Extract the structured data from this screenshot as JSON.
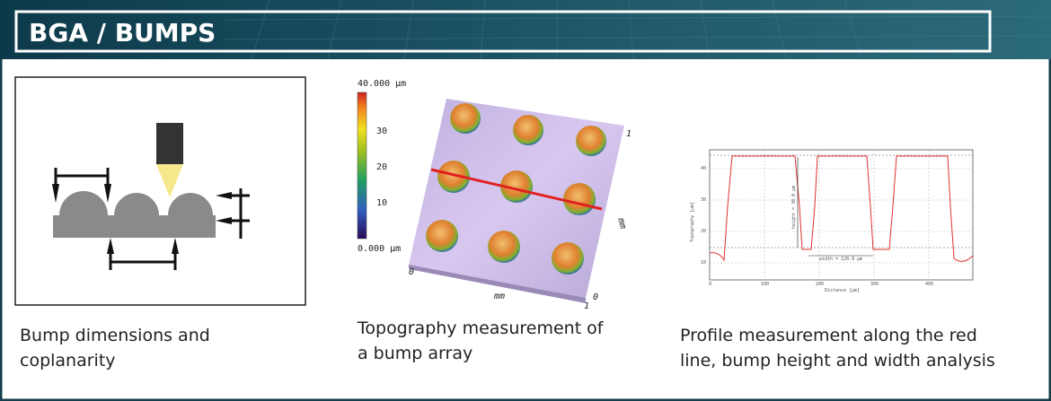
{
  "header": {
    "title": "BGA / BUMPS"
  },
  "panels": [
    {
      "caption": [
        "Bump dimensions and",
        "coplanarity"
      ]
    },
    {
      "caption": [
        "Topography measurement of",
        "a bump array"
      ],
      "colorbar": {
        "top": "40.000 µm",
        "ticks": [
          "30",
          "20",
          "10"
        ],
        "bottom": "0.000 µm"
      },
      "axes": {
        "corner_top": "1",
        "right_label": "mm",
        "origin": "0",
        "bottom_label": "mm",
        "bottom_end": "1",
        "right_origin": "0"
      }
    },
    {
      "caption": [
        "Profile measurement along the red",
        "line, bump height and width analysis"
      ],
      "chart": {
        "y_label": "Topography [µm]",
        "x_label": "Distance [µm]",
        "yticks": [
          "10",
          "20",
          "30",
          "40"
        ],
        "xticks": [
          "0",
          "100",
          "200",
          "300",
          "400"
        ],
        "height_note": "height = 30.0 µm",
        "width_note": "width = 120.0 µm"
      }
    }
  ]
}
